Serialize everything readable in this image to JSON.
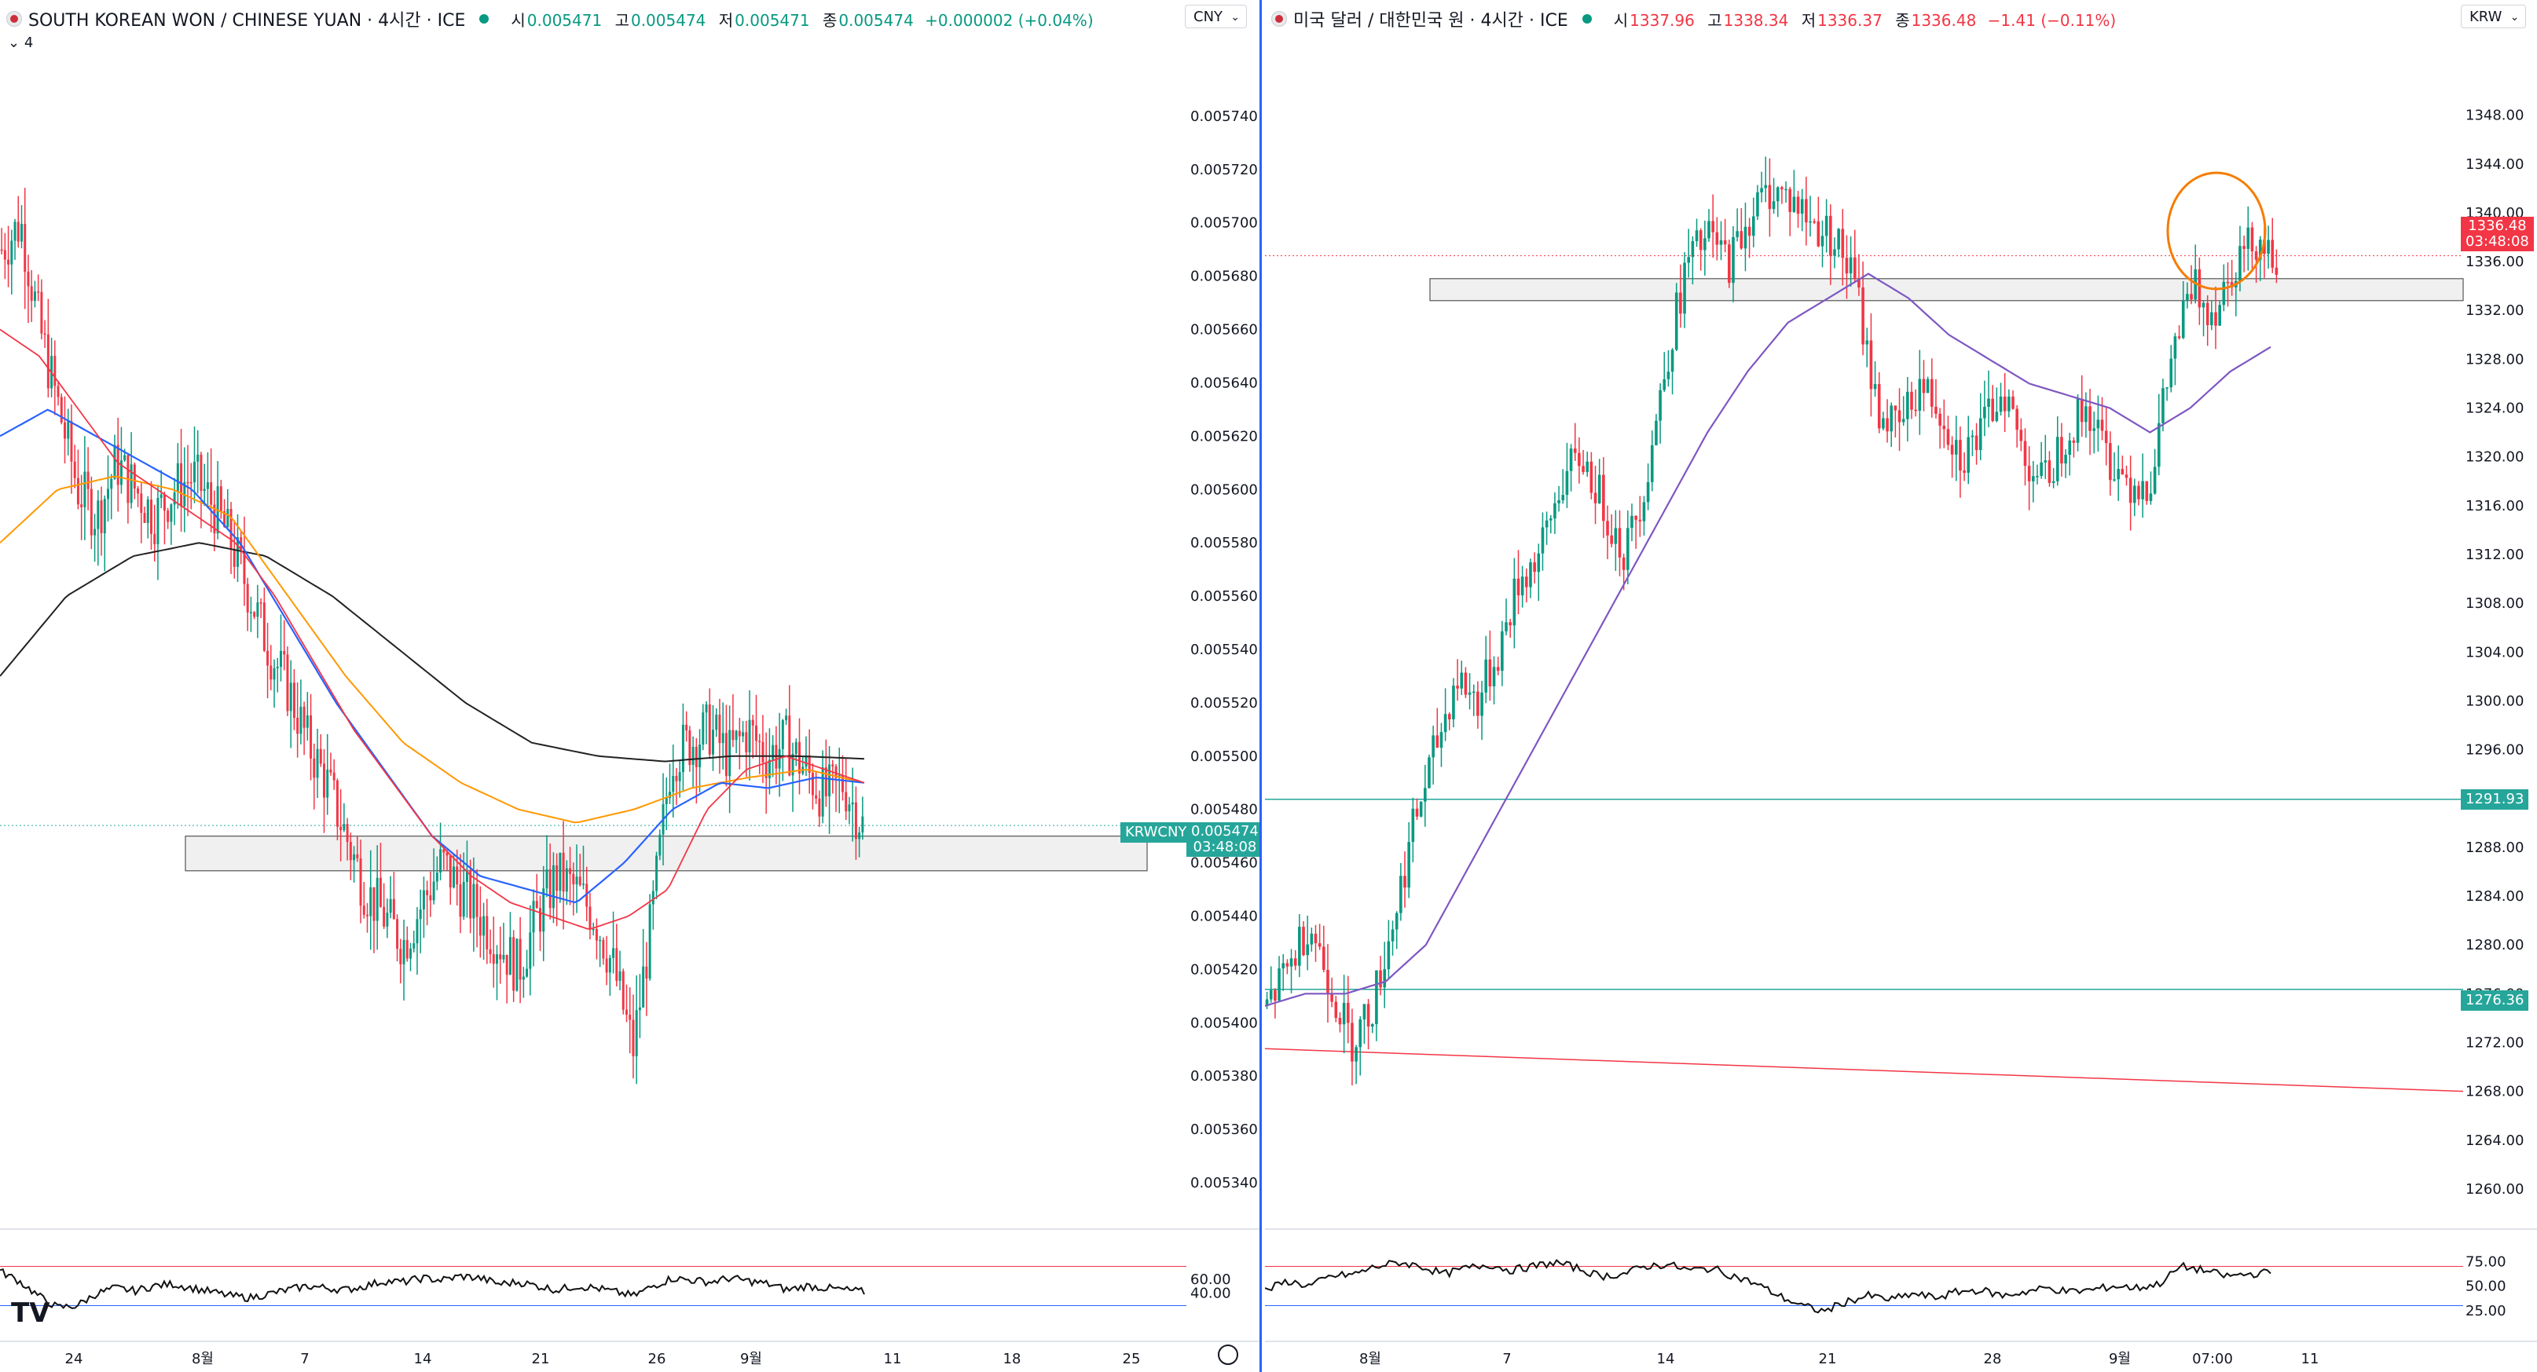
{
  "colors": {
    "up": "#089981",
    "down": "#f23645",
    "ma_red": "#f23645",
    "ma_blue": "#2962ff",
    "ma_orange": "#ff9800",
    "ma_black": "#222222",
    "ma_purple": "#7e57c2",
    "zone_fill": "#f0f0f0",
    "zone_stroke": "#555555",
    "level_line": "#26a69a",
    "divider": "#2962ff"
  },
  "left": {
    "title": "SOUTH KOREAN WON / CHINESE YUAN · 4시간 · ICE",
    "ohlc": {
      "o_label": "시",
      "o": "0.005471",
      "h_label": "고",
      "h": "0.005474",
      "l_label": "저",
      "l": "0.005471",
      "c_label": "종",
      "c": "0.005474",
      "chg": "+0.000002 (+0.04%)"
    },
    "currency": "CNY",
    "indicator_toggle": "4",
    "price_ticks": [
      "0.005740",
      "0.005720",
      "0.005700",
      "0.005680",
      "0.005660",
      "0.005640",
      "0.005620",
      "0.005600",
      "0.005580",
      "0.005560",
      "0.005540",
      "0.005520",
      "0.005500",
      "0.005480",
      "0.005460",
      "0.005440",
      "0.005420",
      "0.005400",
      "0.005380",
      "0.005360",
      "0.005340"
    ],
    "time_ticks": [
      "24",
      "8월",
      "7",
      "14",
      "21",
      "26",
      "9월",
      "11",
      "18",
      "25"
    ],
    "symbol_tag": "KRWCNY",
    "last_price": "0.005474",
    "countdown": "03:48:08",
    "rsi_ticks": [
      "60.00",
      "40.00"
    ],
    "logo": "TV"
  },
  "right": {
    "title": "미국 달러 / 대한민국 원 · 4시간 · ICE",
    "ohlc": {
      "o_label": "시",
      "o": "1337.96",
      "h_label": "고",
      "h": "1338.34",
      "l_label": "저",
      "l": "1336.37",
      "c_label": "종",
      "c": "1336.48",
      "chg": "−1.41 (−0.11%)"
    },
    "currency": "KRW",
    "price_ticks": [
      "1348.00",
      "1344.00",
      "1340.00",
      "1336.00",
      "1332.00",
      "1328.00",
      "1324.00",
      "1320.00",
      "1316.00",
      "1312.00",
      "1308.00",
      "1304.00",
      "1300.00",
      "1296.00",
      "1292.00",
      "1288.00",
      "1284.00",
      "1280.00",
      "1276.00",
      "1272.00",
      "1268.00",
      "1264.00",
      "1260.00"
    ],
    "time_ticks": [
      "8월",
      "7",
      "14",
      "21",
      "28",
      "9월",
      "07:00",
      "11"
    ],
    "last_price": "1336.48",
    "countdown": "03:48:08",
    "level_1": "1291.93",
    "level_2": "1276.36",
    "rsi_ticks": [
      "75.00",
      "50.00",
      "25.00"
    ]
  },
  "chart_data": [
    {
      "type": "candlestick",
      "title": "SOUTH KOREAN WON / CHINESE YUAN · 4시간 · ICE",
      "symbol": "KRWCNY",
      "ylim": [
        0.00533,
        0.00576
      ],
      "x_ticks": [
        "24",
        "8월",
        "7",
        "14",
        "21",
        "26",
        "9월",
        "11",
        "18",
        "25"
      ],
      "close_path": [
        0.00569,
        0.0057,
        0.00566,
        0.00563,
        0.0056,
        0.00559,
        0.00561,
        0.0056,
        0.00559,
        0.0056,
        0.005605,
        0.005595,
        0.00558,
        0.00556,
        0.00554,
        0.005525,
        0.005505,
        0.00549,
        0.00547,
        0.00545,
        0.00544,
        0.00543,
        0.005445,
        0.00546,
        0.00545,
        0.00544,
        0.00543,
        0.00542,
        0.00544,
        0.005455,
        0.00545,
        0.00544,
        0.00542,
        0.00539,
        0.00544,
        0.0055,
        0.005505,
        0.00551,
        0.0055,
        0.00551,
        0.0055,
        0.005505,
        0.005495,
        0.005485,
        0.00549,
        0.005474
      ],
      "ma_red_path": [
        0.00566,
        0.00565,
        0.00563,
        0.00561,
        0.0056,
        0.00559,
        0.00558,
        0.00556,
        0.005535,
        0.00551,
        0.00549,
        0.00547,
        0.005455,
        0.005445,
        0.00544,
        0.005435,
        0.00544,
        0.00545,
        0.00548,
        0.005495,
        0.0055,
        0.005495,
        0.00549
      ],
      "ma_blue_path": [
        0.00562,
        0.00563,
        0.00562,
        0.00561,
        0.0056,
        0.00558,
        0.00555,
        0.00552,
        0.005495,
        0.00547,
        0.005455,
        0.00545,
        0.005445,
        0.00546,
        0.00548,
        0.00549,
        0.005488,
        0.005492,
        0.00549
      ],
      "ma_orange_path": [
        0.00558,
        0.0056,
        0.005605,
        0.0056,
        0.00559,
        0.00556,
        0.00553,
        0.005505,
        0.00549,
        0.00548,
        0.005475,
        0.00548,
        0.005488,
        0.005492,
        0.005495,
        0.00549
      ],
      "ma_black_path": [
        0.00553,
        0.00556,
        0.005575,
        0.00558,
        0.005575,
        0.00556,
        0.00554,
        0.00552,
        0.005505,
        0.0055,
        0.005498,
        0.0055,
        0.0055,
        0.005499
      ],
      "support_zone": [
        0.005457,
        0.00547
      ],
      "last_price": 0.005474,
      "rsi": {
        "ylim": [
          0,
          100
        ],
        "lines": [
          70,
          30
        ],
        "path": [
          65,
          55,
          40,
          28,
          30,
          42,
          48,
          45,
          50,
          52,
          48,
          44,
          40,
          38,
          42,
          46,
          50,
          48,
          46,
          50,
          55,
          54,
          58,
          56,
          60,
          58,
          52,
          54,
          50,
          46,
          50,
          48,
          44,
          40,
          50,
          58,
          56,
          54,
          58,
          55,
          52,
          46,
          50,
          48,
          46,
          44
        ]
      }
    },
    {
      "type": "candlestick",
      "title": "미국 달러 / 대한민국 원 · 4시간 · ICE",
      "symbol": "USDKRW",
      "ylim": [
        1258,
        1351
      ],
      "x_ticks": [
        "8월",
        "7",
        "14",
        "21",
        "28",
        "9월",
        "07:00",
        "11"
      ],
      "close_path": [
        1275,
        1278,
        1282,
        1277,
        1272,
        1275,
        1282,
        1290,
        1296,
        1302,
        1300,
        1304,
        1310,
        1312,
        1318,
        1320,
        1316,
        1312,
        1318,
        1328,
        1336,
        1338,
        1336,
        1340,
        1342,
        1341,
        1339,
        1338,
        1334,
        1324,
        1322,
        1326,
        1324,
        1320,
        1322,
        1326,
        1320,
        1318,
        1322,
        1324,
        1320,
        1318,
        1318,
        1328,
        1334,
        1332,
        1336,
        1338,
        1336.48
      ],
      "ma_purple_path": [
        1275,
        1276,
        1276,
        1277,
        1280,
        1286,
        1292,
        1298,
        1304,
        1310,
        1316,
        1322,
        1327,
        1331,
        1333,
        1335,
        1333,
        1330,
        1328,
        1326,
        1325,
        1324,
        1322,
        1324,
        1327,
        1329
      ],
      "resistance_zone": [
        1332.8,
        1334.6
      ],
      "level_1": 1291.93,
      "level_2": 1276.36,
      "trendline": [
        [
          0,
          1271.5
        ],
        [
          1,
          1268.0
        ]
      ],
      "last_price": 1336.48,
      "rsi": {
        "ylim": [
          0,
          100
        ],
        "lines": [
          70,
          30
        ],
        "path": [
          45,
          55,
          50,
          60,
          62,
          70,
          74,
          70,
          62,
          68,
          72,
          66,
          70,
          74,
          68,
          60,
          62,
          70,
          72,
          66,
          68,
          60,
          52,
          40,
          30,
          24,
          34,
          40,
          36,
          42,
          38,
          44,
          46,
          40,
          44,
          48,
          44,
          46,
          50,
          48,
          52,
          70,
          66,
          60,
          62,
          64
        ]
      },
      "annotation": "circle"
    }
  ]
}
